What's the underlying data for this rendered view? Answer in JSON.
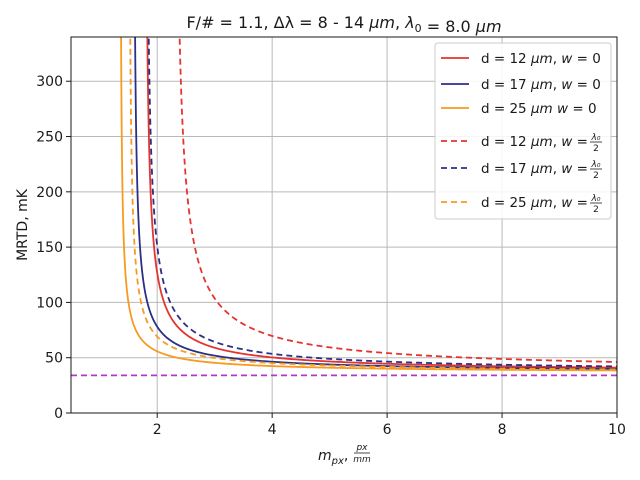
{
  "chart_data": {
    "type": "line",
    "title": "F/# = 1.1, Δλ = 8 - 14 μm, λ₀ = 8.0 μm",
    "xlabel": "m_px, px/mm",
    "xlabel_parts": {
      "main": "m",
      "sub": "px",
      "sep": ",",
      "num": "px",
      "den": "mm"
    },
    "ylabel": "MRTD, mK",
    "xlim": [
      0.5,
      10
    ],
    "ylim": [
      0,
      340
    ],
    "xticks": [
      2,
      4,
      6,
      8,
      10
    ],
    "yticks": [
      0,
      50,
      100,
      150,
      200,
      250,
      300
    ],
    "grid": true,
    "legend_position": "top-right",
    "model": "MRTD = floor + k / (m_px - m0)^p",
    "series": [
      {
        "name": "d = 12 μm, w = 0",
        "legend": {
          "left": "d = 12 ",
          "unit": "μm",
          "wvar": "w",
          "eq": " = ",
          "wval": "0"
        },
        "color": "#e3342f",
        "dash": false,
        "floor": 36,
        "k": 27,
        "m0": 1.78,
        "p": 0.8
      },
      {
        "name": "d = 17 μm, w = 0",
        "legend": {
          "left": "d = 17 ",
          "unit": "μm",
          "wvar": "w",
          "eq": " = ",
          "wval": "0"
        },
        "color": "#2b2f86",
        "dash": false,
        "floor": 36,
        "k": 21,
        "m0": 1.58,
        "p": 0.8
      },
      {
        "name": "d = 25 μm  w = 0",
        "legend": {
          "left": "d = 25 ",
          "unit": "μm",
          "wvar": "w",
          "eq": " = ",
          "wval": "0",
          "nocomma": true
        },
        "color": "#f79a1f",
        "dash": false,
        "floor": 36,
        "k": 14,
        "m0": 1.35,
        "p": 0.8
      },
      {
        "name": "d = 12 μm, w = λ₀/2",
        "legend": {
          "left": "d = 12 ",
          "unit": "μm",
          "wvar": "w",
          "eq": " = ",
          "fnum": "λ₀",
          "fden": "2"
        },
        "color": "#e3342f",
        "dash": true,
        "floor": 36,
        "k": 52,
        "m0": 2.28,
        "p": 0.8
      },
      {
        "name": "d = 17 μm, w = λ₀/2",
        "legend": {
          "left": "d = 17 ",
          "unit": "μm",
          "wvar": "w",
          "eq": " = ",
          "fnum": "λ₀",
          "fden": "2"
        },
        "color": "#2b2f86",
        "dash": true,
        "floor": 36,
        "k": 33,
        "m0": 1.79,
        "p": 0.8
      },
      {
        "name": "d = 25 μm, w = λ₀/2",
        "legend": {
          "left": "d = 25 ",
          "unit": "μm",
          "wvar": "w",
          "eq": " = ",
          "fnum": "λ₀",
          "fden": "2"
        },
        "color": "#f79a1f",
        "dash": true,
        "floor": 36,
        "k": 19,
        "m0": 1.5,
        "p": 0.8
      }
    ],
    "hline": {
      "y": 34,
      "color": "#b03ac6",
      "dash": true
    }
  }
}
